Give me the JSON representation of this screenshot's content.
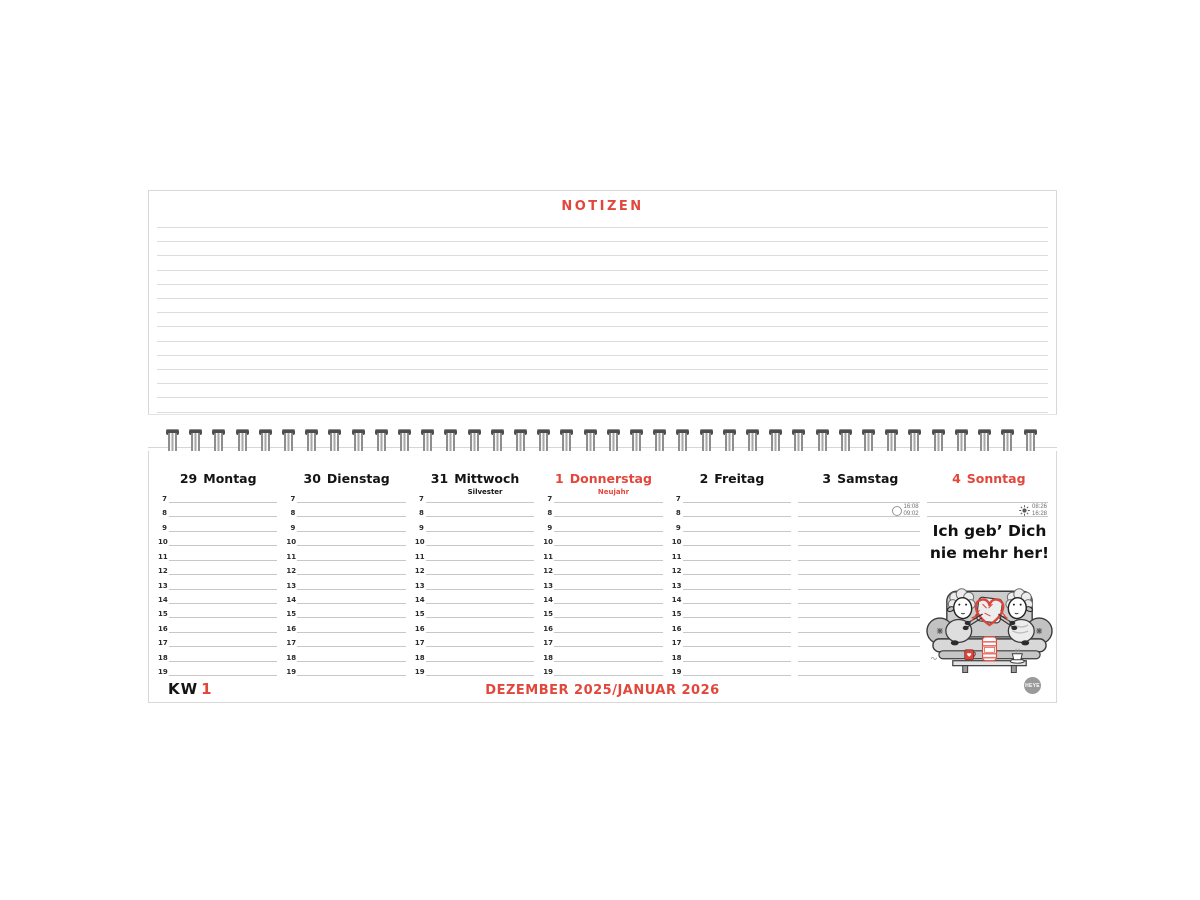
{
  "colors": {
    "accent": "#e2473c",
    "hour_line": "#c7c7c7",
    "notes_line": "#dcdcdc",
    "illustration_red": "#d9463c"
  },
  "notes": {
    "title": "NOTIZEN"
  },
  "binding": {
    "type": "wire-spiral"
  },
  "week": {
    "kw_label": "KW",
    "kw_number": "1",
    "month_label": "DEZEMBER 2025/JANUAR 2026",
    "hours": [
      "7",
      "8",
      "9",
      "10",
      "11",
      "12",
      "13",
      "14",
      "15",
      "16",
      "17",
      "18",
      "19"
    ],
    "days": [
      {
        "date": "29",
        "name": "Montag",
        "holiday": "",
        "red": false,
        "style": "numbered"
      },
      {
        "date": "30",
        "name": "Dienstag",
        "holiday": "",
        "red": false,
        "style": "numbered"
      },
      {
        "date": "31",
        "name": "Mittwoch",
        "holiday": "Silvester",
        "red": false,
        "style": "numbered"
      },
      {
        "date": "1",
        "name": "Donnerstag",
        "holiday": "Neujahr",
        "red": true,
        "style": "numbered"
      },
      {
        "date": "2",
        "name": "Freitag",
        "holiday": "",
        "red": false,
        "style": "numbered"
      },
      {
        "date": "3",
        "name": "Samstag",
        "holiday": "",
        "red": false,
        "style": "plain",
        "marker": {
          "icon": "moon-icon",
          "times": [
            "16:08",
            "09:02"
          ]
        }
      },
      {
        "date": "4",
        "name": "Sonntag",
        "holiday": "",
        "red": true,
        "style": "sunday",
        "marker": {
          "icon": "sun-icon",
          "times": [
            "08:26",
            "16:28"
          ]
        }
      }
    ],
    "motto": [
      "Ich geb’ Dich",
      "nie mehr her!"
    ],
    "publisher_logo": "HEYE"
  }
}
